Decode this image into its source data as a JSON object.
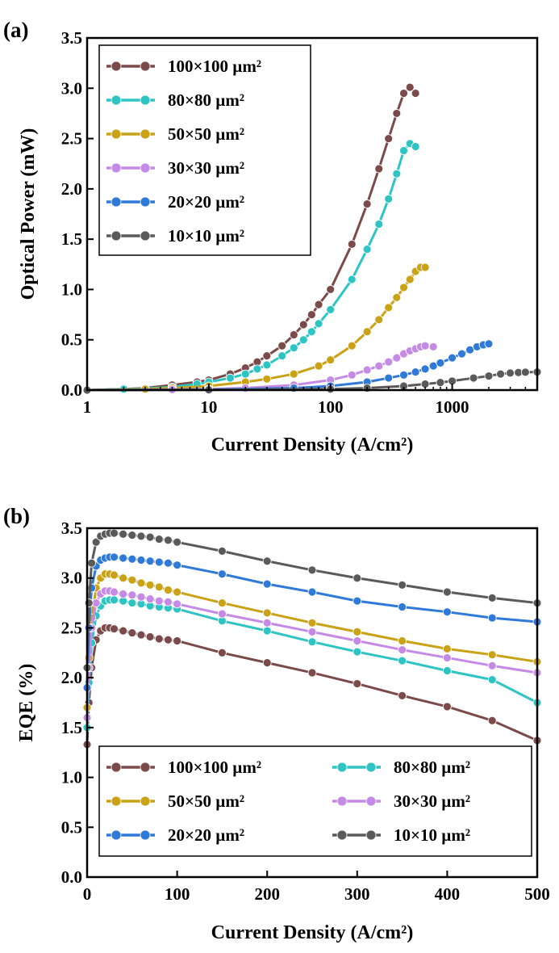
{
  "chart_data": [
    {
      "panel_label": "(a)",
      "type": "line",
      "xscale": "log",
      "xlabel": "Current Density (A/cm²)",
      "ylabel": "Optical Power (mW)",
      "xlim": [
        1,
        5000
      ],
      "ylim": [
        0,
        3.5
      ],
      "xticks": [
        1,
        10,
        100,
        1000
      ],
      "xtick_labels": [
        "1",
        "10",
        "100",
        "1000"
      ],
      "yticks": [
        0,
        0.5,
        1,
        1.5,
        2,
        2.5,
        3,
        3.5
      ],
      "ytick_labels": [
        "0.0",
        "0.5",
        "1.0",
        "1.5",
        "2.0",
        "2.5",
        "3.0",
        "3.5"
      ],
      "legend_position": "top-left",
      "series": [
        {
          "name": "100×100 µm²",
          "color": "#7b4a4a",
          "x": [
            1,
            2,
            3,
            5,
            8,
            10,
            15,
            20,
            25,
            30,
            40,
            50,
            60,
            70,
            80,
            100,
            150,
            200,
            250,
            300,
            350,
            400,
            450,
            500
          ],
          "y": [
            0,
            0.01,
            0.02,
            0.05,
            0.08,
            0.1,
            0.16,
            0.22,
            0.28,
            0.34,
            0.44,
            0.55,
            0.65,
            0.75,
            0.85,
            1.0,
            1.45,
            1.85,
            2.2,
            2.5,
            2.75,
            2.95,
            3.01,
            2.95
          ]
        },
        {
          "name": "80×80 µm²",
          "color": "#2ec4c4",
          "x": [
            1,
            2,
            3,
            5,
            8,
            10,
            15,
            20,
            25,
            30,
            40,
            50,
            60,
            70,
            80,
            100,
            150,
            200,
            250,
            300,
            350,
            400,
            450,
            500
          ],
          "y": [
            0,
            0.01,
            0.015,
            0.03,
            0.06,
            0.08,
            0.12,
            0.16,
            0.21,
            0.25,
            0.34,
            0.42,
            0.5,
            0.58,
            0.66,
            0.8,
            1.1,
            1.4,
            1.65,
            1.9,
            2.15,
            2.38,
            2.45,
            2.42
          ]
        },
        {
          "name": "50×50 µm²",
          "color": "#c9a216",
          "x": [
            1,
            3,
            5,
            10,
            20,
            30,
            50,
            80,
            100,
            150,
            200,
            250,
            300,
            350,
            400,
            450,
            500,
            550,
            600
          ],
          "y": [
            0,
            0.01,
            0.02,
            0.04,
            0.08,
            0.11,
            0.16,
            0.24,
            0.3,
            0.44,
            0.58,
            0.7,
            0.82,
            0.92,
            1.02,
            1.1,
            1.18,
            1.22,
            1.22
          ]
        },
        {
          "name": "30×30 µm²",
          "color": "#c58ae6",
          "x": [
            1,
            5,
            10,
            20,
            50,
            100,
            150,
            200,
            250,
            300,
            350,
            400,
            450,
            500,
            550,
            600,
            700
          ],
          "y": [
            0,
            0.005,
            0.01,
            0.02,
            0.05,
            0.1,
            0.15,
            0.2,
            0.24,
            0.28,
            0.32,
            0.36,
            0.39,
            0.41,
            0.43,
            0.44,
            0.43
          ]
        },
        {
          "name": "20×20 µm²",
          "color": "#2f79d8",
          "x": [
            1,
            10,
            50,
            100,
            200,
            300,
            400,
            500,
            600,
            700,
            800,
            1000,
            1200,
            1400,
            1600,
            1800,
            2000
          ],
          "y": [
            0,
            0.005,
            0.02,
            0.04,
            0.08,
            0.12,
            0.15,
            0.18,
            0.21,
            0.24,
            0.27,
            0.32,
            0.36,
            0.4,
            0.43,
            0.45,
            0.46
          ]
        },
        {
          "name": "10×10 µm²",
          "color": "#5a5a5a",
          "x": [
            1,
            10,
            100,
            200,
            400,
            600,
            800,
            1000,
            1500,
            2000,
            2500,
            3000,
            3500,
            4000,
            5000
          ],
          "y": [
            0,
            0.003,
            0.01,
            0.02,
            0.04,
            0.06,
            0.075,
            0.09,
            0.12,
            0.14,
            0.16,
            0.17,
            0.175,
            0.178,
            0.18
          ]
        }
      ]
    },
    {
      "panel_label": "(b)",
      "type": "line",
      "xscale": "linear",
      "xlabel": "Current Density (A/cm²)",
      "ylabel": "EQE (%)",
      "xlim": [
        0,
        500
      ],
      "ylim": [
        0,
        3.5
      ],
      "xticks": [
        0,
        100,
        200,
        300,
        400,
        500
      ],
      "xtick_labels": [
        "0",
        "100",
        "200",
        "300",
        "400",
        "500"
      ],
      "yticks": [
        0,
        0.5,
        1,
        1.5,
        2,
        2.5,
        3,
        3.5
      ],
      "ytick_labels": [
        "0.0",
        "0.5",
        "1.0",
        "1.5",
        "2.0",
        "2.5",
        "3.0",
        "3.5"
      ],
      "legend_position": "bottom",
      "series": [
        {
          "name": "100×100 µm²",
          "color": "#7b4a4a",
          "x": [
            0,
            2,
            5,
            10,
            15,
            20,
            25,
            30,
            40,
            50,
            60,
            70,
            80,
            90,
            100,
            150,
            200,
            250,
            300,
            350,
            400,
            450,
            500
          ],
          "y": [
            1.33,
            1.75,
            2.1,
            2.38,
            2.47,
            2.5,
            2.5,
            2.49,
            2.47,
            2.45,
            2.43,
            2.41,
            2.39,
            2.38,
            2.37,
            2.25,
            2.15,
            2.05,
            1.94,
            1.82,
            1.71,
            1.57,
            1.37
          ]
        },
        {
          "name": "80×80 µm²",
          "color": "#2ec4c4",
          "x": [
            0,
            2,
            5,
            10,
            15,
            20,
            25,
            30,
            40,
            50,
            60,
            70,
            80,
            90,
            100,
            150,
            200,
            250,
            300,
            350,
            400,
            450,
            500
          ],
          "y": [
            1.5,
            1.95,
            2.35,
            2.62,
            2.72,
            2.77,
            2.78,
            2.78,
            2.77,
            2.75,
            2.74,
            2.72,
            2.71,
            2.7,
            2.69,
            2.57,
            2.47,
            2.36,
            2.26,
            2.17,
            2.07,
            1.98,
            1.75
          ]
        },
        {
          "name": "50×50 µm²",
          "color": "#c9a216",
          "x": [
            0,
            2,
            5,
            10,
            15,
            20,
            25,
            30,
            40,
            50,
            60,
            70,
            80,
            90,
            100,
            150,
            200,
            250,
            300,
            350,
            400,
            450,
            500
          ],
          "y": [
            1.7,
            2.2,
            2.6,
            2.9,
            3.0,
            3.04,
            3.04,
            3.03,
            3.0,
            2.98,
            2.95,
            2.93,
            2.91,
            2.88,
            2.86,
            2.75,
            2.65,
            2.55,
            2.46,
            2.37,
            2.29,
            2.23,
            2.16
          ]
        },
        {
          "name": "30×30 µm²",
          "color": "#c58ae6",
          "x": [
            0,
            2,
            5,
            10,
            15,
            20,
            25,
            30,
            40,
            50,
            60,
            70,
            80,
            90,
            100,
            150,
            200,
            250,
            300,
            350,
            400,
            450,
            500
          ],
          "y": [
            1.6,
            2.1,
            2.5,
            2.75,
            2.84,
            2.87,
            2.87,
            2.86,
            2.84,
            2.83,
            2.81,
            2.79,
            2.77,
            2.76,
            2.74,
            2.64,
            2.55,
            2.46,
            2.37,
            2.28,
            2.2,
            2.12,
            2.05
          ]
        },
        {
          "name": "20×20 µm²",
          "color": "#2f79d8",
          "x": [
            0,
            2,
            5,
            10,
            15,
            20,
            25,
            30,
            40,
            50,
            60,
            70,
            80,
            90,
            100,
            150,
            200,
            250,
            300,
            350,
            400,
            450,
            500
          ],
          "y": [
            1.9,
            2.5,
            2.9,
            3.12,
            3.18,
            3.2,
            3.21,
            3.21,
            3.2,
            3.19,
            3.18,
            3.17,
            3.16,
            3.15,
            3.13,
            3.04,
            2.94,
            2.86,
            2.77,
            2.71,
            2.66,
            2.6,
            2.56
          ]
        },
        {
          "name": "10×10 µm²",
          "color": "#5a5a5a",
          "x": [
            0,
            2,
            5,
            10,
            15,
            20,
            25,
            30,
            40,
            50,
            60,
            70,
            80,
            90,
            100,
            150,
            200,
            250,
            300,
            350,
            400,
            450,
            500
          ],
          "y": [
            2.1,
            2.75,
            3.15,
            3.36,
            3.42,
            3.44,
            3.45,
            3.45,
            3.44,
            3.43,
            3.42,
            3.41,
            3.39,
            3.38,
            3.36,
            3.27,
            3.17,
            3.08,
            3.0,
            2.93,
            2.86,
            2.8,
            2.75
          ]
        }
      ]
    }
  ]
}
